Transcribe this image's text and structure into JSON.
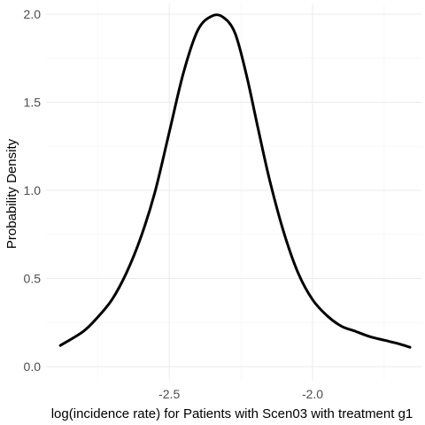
{
  "chart_data": {
    "type": "line",
    "title": "",
    "xlabel": "log(incidence rate) for Patients with Scen03 with treatment g1",
    "ylabel": "Probability Density",
    "xlim": [
      -2.93,
      -1.62
    ],
    "ylim": [
      -0.08,
      2.06
    ],
    "x_ticks": [
      -2.5,
      -2.0
    ],
    "x_tick_labels": [
      "-2.5",
      "-2.0"
    ],
    "y_ticks": [
      0.0,
      0.5,
      1.0,
      1.5,
      2.0
    ],
    "y_tick_labels": [
      "0.0",
      "0.5",
      "1.0",
      "1.5",
      "2.0"
    ],
    "grid": true,
    "line_color": "#000000",
    "series": [
      {
        "x": [
          -2.88,
          -2.8,
          -2.75,
          -2.7,
          -2.65,
          -2.6,
          -2.55,
          -2.5,
          -2.45,
          -2.4,
          -2.35,
          -2.31,
          -2.27,
          -2.23,
          -2.19,
          -2.15,
          -2.1,
          -2.05,
          -2.0,
          -1.95,
          -1.9,
          -1.85,
          -1.8,
          -1.75,
          -1.7,
          -1.66
        ],
        "values": [
          0.12,
          0.2,
          0.28,
          0.38,
          0.53,
          0.73,
          0.99,
          1.33,
          1.67,
          1.91,
          1.99,
          1.98,
          1.89,
          1.65,
          1.35,
          1.06,
          0.76,
          0.53,
          0.38,
          0.29,
          0.23,
          0.2,
          0.17,
          0.15,
          0.13,
          0.11
        ]
      }
    ]
  }
}
